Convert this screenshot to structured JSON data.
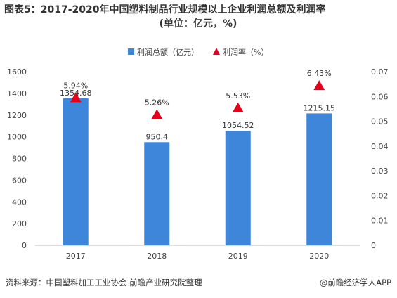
{
  "title_line1": "图表5：2017-2020年中国塑料制品行业规模以上企业利润总额及利润率",
  "title_line2": "(单位：亿元，%)",
  "source": "资料来源：中国塑料加工工业协会 前瞻产业研究院整理",
  "brand": "@前瞻经济学人APP",
  "colors": {
    "bar": "#3d86d9",
    "marker": "#e4001b",
    "axis": "#bbbbbb",
    "text": "#444444"
  },
  "chart_data": {
    "type": "bar",
    "categories": [
      "2017",
      "2018",
      "2019",
      "2020"
    ],
    "series": [
      {
        "name": "利润总额（亿元）",
        "type": "bar",
        "axis": "left",
        "values": [
          1354.68,
          950.4,
          1054.52,
          1215.15
        ],
        "labels": [
          "1354.68",
          "950.4",
          "1054.52",
          "1215.15"
        ]
      },
      {
        "name": "利润率（%）",
        "type": "scatter",
        "axis": "right",
        "marker": "triangle",
        "values": [
          0.0594,
          0.0526,
          0.0553,
          0.0643
        ],
        "labels": [
          "5.94%",
          "5.26%",
          "5.53%",
          "6.43%"
        ]
      }
    ],
    "y_left": {
      "min": 0,
      "max": 1600,
      "ticks": [
        "0",
        "200",
        "400",
        "600",
        "800",
        "1000",
        "1200",
        "1400",
        "1600"
      ]
    },
    "y_right": {
      "min": 0,
      "max": 0.07,
      "ticks": [
        "0",
        "0.01",
        "0.02",
        "0.03",
        "0.04",
        "0.05",
        "0.06",
        "0.07"
      ]
    },
    "legend_position": "top-center",
    "grid": false
  }
}
